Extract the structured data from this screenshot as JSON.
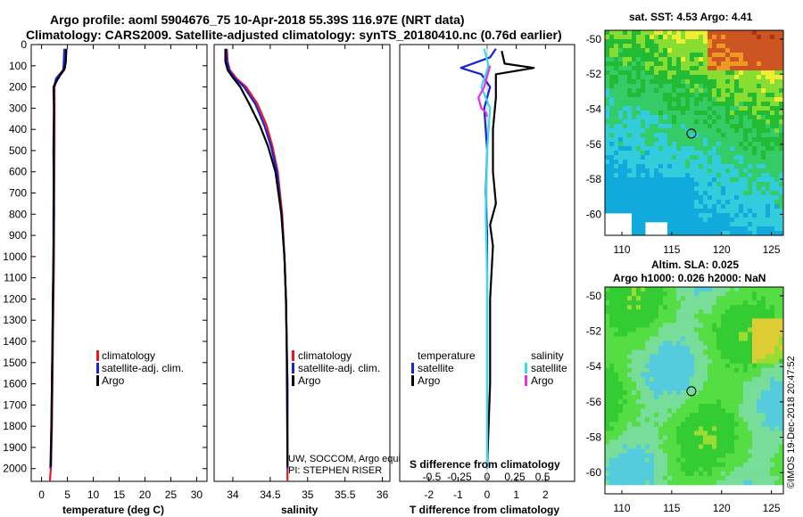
{
  "figure": {
    "title_line1": "Argo profile: aoml 5904676_75 10-Apr-2018 55.39S 116.97E (NRT data)",
    "title_line2": "Climatology: CARS2009. Satellite-adjusted climatology: synTS_20180410.nc (0.76d earlier)",
    "credit_line1": "UW, SOCCOM, Argo equivalent",
    "credit_line2": "PI: STEPHEN RISER",
    "imos_stamp": "©IMOS 19-Dec-2018 20:47:52"
  },
  "colors": {
    "climatology": "#e8191f",
    "satellite": "#1a23d8",
    "argo": "#000000",
    "sat_salinity": "#33ddee",
    "argo_salinity": "#e830e0"
  },
  "chart_data": [
    {
      "type": "line",
      "name": "temperature-profile",
      "xlabel": "temperature (deg C)",
      "ylabel": "",
      "xlim": [
        -2,
        32
      ],
      "ylim": [
        2060,
        0
      ],
      "xticks": [
        "0",
        "5",
        "10",
        "15",
        "20",
        "25",
        "30"
      ],
      "xtick_values": [
        0,
        5,
        10,
        15,
        20,
        25,
        30
      ],
      "yticks": [
        "0",
        "100",
        "200",
        "300",
        "400",
        "500",
        "600",
        "700",
        "800",
        "900",
        "1000",
        "1100",
        "1200",
        "1300",
        "1400",
        "1500",
        "1600",
        "1700",
        "1800",
        "1900",
        "2000"
      ],
      "ytick_values": [
        0,
        100,
        200,
        300,
        400,
        500,
        600,
        700,
        800,
        900,
        1000,
        1100,
        1200,
        1300,
        1400,
        1500,
        1600,
        1700,
        1800,
        1900,
        2000
      ],
      "legend": [
        "climatology",
        "satellite-adj. clim.",
        "Argo"
      ],
      "series": [
        {
          "name": "climatology",
          "x": [
            4.6,
            4.6,
            4.4,
            3.0,
            2.5,
            2.5,
            2.5,
            2.4,
            2.4,
            2.3,
            2.2,
            2.1,
            2.0,
            1.8,
            1.6
          ],
          "y": [
            20,
            80,
            120,
            160,
            200,
            300,
            500,
            800,
            1000,
            1200,
            1400,
            1600,
            1800,
            2000,
            2060
          ]
        },
        {
          "name": "satellite-adj. clim.",
          "x": [
            4.4,
            4.3,
            4.2,
            2.8,
            2.4,
            2.4,
            2.4,
            2.3,
            2.3,
            2.2,
            2.1,
            2.0,
            1.9,
            1.7
          ],
          "y": [
            20,
            80,
            120,
            160,
            200,
            300,
            500,
            800,
            1000,
            1200,
            1400,
            1600,
            1800,
            2000
          ]
        },
        {
          "name": "Argo",
          "x": [
            4.8,
            4.7,
            4.5,
            3.2,
            2.3,
            2.4,
            2.3,
            2.4,
            2.3,
            2.2,
            2.1,
            2.0,
            1.9,
            1.8
          ],
          "y": [
            20,
            80,
            110,
            160,
            200,
            300,
            500,
            800,
            1000,
            1200,
            1400,
            1600,
            1800,
            1990
          ]
        }
      ]
    },
    {
      "type": "line",
      "name": "salinity-profile",
      "xlabel": "salinity",
      "ylabel": "",
      "xlim": [
        33.75,
        36.1
      ],
      "ylim": [
        2060,
        0
      ],
      "xticks": [
        "34",
        "34.5",
        "35",
        "35.5",
        "36"
      ],
      "xtick_values": [
        34,
        34.5,
        35,
        35.5,
        36
      ],
      "legend": [
        "climatology",
        "satellite-adj. clim.",
        "Argo"
      ],
      "series": [
        {
          "name": "climatology",
          "x": [
            33.92,
            33.93,
            33.96,
            34.05,
            34.18,
            34.33,
            34.45,
            34.53,
            34.6,
            34.66,
            34.69,
            34.71,
            34.72,
            34.73,
            34.73,
            34.73
          ],
          "y": [
            20,
            80,
            120,
            160,
            200,
            280,
            380,
            480,
            600,
            800,
            1000,
            1200,
            1400,
            1600,
            1800,
            2060
          ]
        },
        {
          "name": "satellite-adj. clim.",
          "x": [
            33.91,
            33.92,
            33.95,
            34.03,
            34.15,
            34.3,
            34.42,
            34.51,
            34.59,
            34.65,
            34.69,
            34.71,
            34.72,
            34.73,
            34.73,
            34.73
          ],
          "y": [
            20,
            80,
            120,
            160,
            200,
            280,
            380,
            480,
            600,
            800,
            1000,
            1200,
            1400,
            1600,
            1800,
            2000
          ]
        },
        {
          "name": "Argo",
          "x": [
            33.9,
            33.9,
            33.93,
            34.01,
            34.1,
            34.22,
            34.36,
            34.47,
            34.57,
            34.65,
            34.69,
            34.71,
            34.72,
            34.73
          ],
          "y": [
            20,
            80,
            120,
            160,
            200,
            280,
            380,
            480,
            600,
            800,
            1000,
            1200,
            1400,
            1990
          ]
        }
      ]
    },
    {
      "type": "line",
      "name": "difference-profile",
      "xlabel": "T difference from climatology",
      "secondary_xlabel": "S difference from climatology",
      "xlim": [
        -3,
        3
      ],
      "ylim": [
        2060,
        0
      ],
      "xticks": [
        "-2",
        "-1",
        "0",
        "1",
        "2"
      ],
      "xtick_values": [
        -2,
        -1,
        0,
        1,
        2
      ],
      "sticks": [
        "-0.5",
        "-0.25",
        "0",
        "0.25",
        "0.5"
      ],
      "stick_values": [
        -1.9,
        -0.95,
        0,
        0.95,
        1.9
      ],
      "legend_temperature_title": "temperature",
      "legend_salinity_title": "salinity",
      "legend_temperature": [
        "satellite",
        "Argo"
      ],
      "legend_salinity": [
        "satellite",
        "Argo"
      ],
      "series": [
        {
          "name": "T satellite",
          "x": [
            0.3,
            0.1,
            -0.9,
            -0.2,
            0.1,
            -0.1,
            0,
            -0.05,
            0,
            0,
            0,
            0,
            0
          ],
          "y": [
            20,
            60,
            110,
            140,
            200,
            300,
            500,
            700,
            900,
            1100,
            1500,
            1800,
            2000
          ]
        },
        {
          "name": "T Argo",
          "x": [
            0.5,
            0.6,
            1.6,
            0.3,
            0.3,
            0.2,
            0.2,
            0.3,
            0.1,
            0.2,
            0.1,
            0.1,
            0
          ],
          "y": [
            30,
            90,
            110,
            140,
            250,
            400,
            600,
            750,
            850,
            950,
            1200,
            1600,
            1990
          ]
        },
        {
          "name": "S satellite",
          "x": [
            -0.1,
            0.05,
            -0.2,
            0.1,
            0,
            -0.05,
            0,
            0,
            0
          ],
          "y": [
            20,
            100,
            200,
            300,
            500,
            800,
            1100,
            1500,
            2000
          ]
        },
        {
          "name": "S Argo",
          "x": [
            0.1,
            -0.1,
            -0.3,
            -0.2,
            -0.05,
            0
          ],
          "y": [
            100,
            200,
            250,
            300,
            320,
            340
          ]
        }
      ]
    },
    {
      "type": "heatmap",
      "name": "sst-map",
      "title": "sat. SST: 4.53 Argo: 4.41",
      "xticks": [
        "110",
        "115",
        "120",
        "125"
      ],
      "xtick_values": [
        110,
        115,
        120,
        125
      ],
      "yticks": [
        "-50",
        "-52",
        "-54",
        "-56",
        "-58",
        "-60"
      ],
      "ytick_values": [
        -50,
        -52,
        -54,
        -56,
        -58,
        -60
      ],
      "xlim": [
        108.3,
        126.2
      ],
      "ylim": [
        -61.2,
        -49.5
      ],
      "argo_position": [
        116.97,
        -55.39
      ]
    },
    {
      "type": "heatmap",
      "name": "sla-map",
      "title": "Altim. SLA: 0.025",
      "subtitle": "Argo h1000: 0.026 h2000: NaN",
      "xticks": [
        "110",
        "115",
        "120",
        "125"
      ],
      "xtick_values": [
        110,
        115,
        120,
        125
      ],
      "yticks": [
        "-50",
        "-52",
        "-54",
        "-56",
        "-58",
        "-60"
      ],
      "ytick_values": [
        -50,
        -52,
        -54,
        -56,
        -58,
        -60
      ],
      "xlim": [
        108.3,
        126.2
      ],
      "ylim": [
        -61.2,
        -49.5
      ],
      "argo_position": [
        116.97,
        -55.39
      ]
    }
  ]
}
